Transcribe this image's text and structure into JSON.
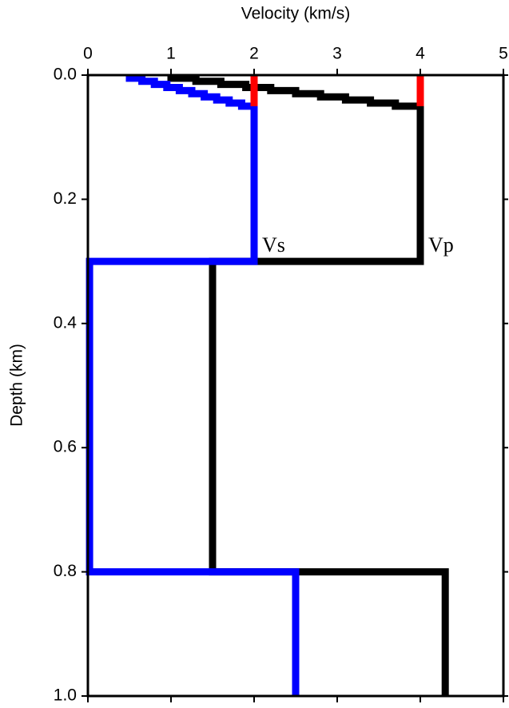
{
  "chart_data": {
    "type": "line",
    "x_label": "Velocity (km/s)",
    "y_label": "Depth (km)",
    "xlim": [
      0,
      5
    ],
    "xticks": [
      0,
      1,
      2,
      3,
      4,
      5
    ],
    "ylim": [
      0,
      1
    ],
    "yticks": [
      {
        "value": 0,
        "label": "0.0"
      },
      0.2,
      0.4,
      0.6,
      0.8,
      {
        "value": 1,
        "label": "1.0"
      }
    ],
    "y_inverted": true,
    "x_axis_position": "top",
    "series": [
      {
        "color": "#ff0000",
        "x": [
          2,
          2
        ],
        "values": [
          0,
          0.05
        ]
      },
      {
        "color": "#ff0000",
        "x": [
          4,
          4
        ],
        "values": [
          0,
          0.05
        ]
      },
      {
        "name": "Vp",
        "color": "#000000",
        "x": [
          1,
          1,
          1.3,
          1.3,
          1.6,
          1.6,
          1.9,
          1.9,
          2.2,
          2.2,
          2.5,
          2.5,
          2.8,
          2.8,
          3.1,
          3.1,
          3.4,
          3.4,
          3.7,
          3.7,
          4,
          4,
          1.5,
          1.5,
          4.3,
          4.3
        ],
        "values": [
          0,
          0.005,
          0.005,
          0.01,
          0.01,
          0.015,
          0.015,
          0.02,
          0.02,
          0.025,
          0.025,
          0.03,
          0.03,
          0.035,
          0.035,
          0.04,
          0.04,
          0.045,
          0.045,
          0.05,
          0.05,
          0.3,
          0.3,
          0.8,
          0.8,
          1
        ]
      },
      {
        "name": "Vs",
        "color": "#0000ff",
        "x": [
          0.5,
          0.5,
          0.65,
          0.65,
          0.8,
          0.8,
          0.95,
          0.95,
          1.1,
          1.1,
          1.25,
          1.25,
          1.4,
          1.4,
          1.55,
          1.55,
          1.7,
          1.7,
          1.85,
          1.85,
          2,
          2,
          0.02,
          0.02,
          2.5,
          2.5
        ],
        "values": [
          0,
          0.005,
          0.005,
          0.01,
          0.01,
          0.015,
          0.015,
          0.02,
          0.02,
          0.025,
          0.025,
          0.03,
          0.03,
          0.035,
          0.035,
          0.04,
          0.04,
          0.045,
          0.045,
          0.05,
          0.05,
          0.3,
          0.3,
          0.8,
          0.8,
          1
        ]
      }
    ]
  }
}
